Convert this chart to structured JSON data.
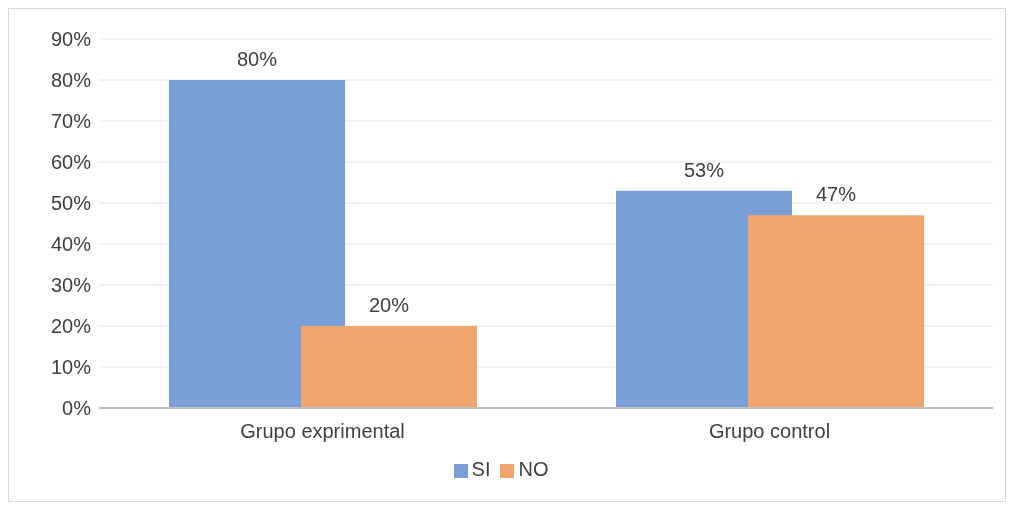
{
  "chart_data": {
    "type": "bar",
    "categories": [
      "Grupo exprimental",
      "Grupo control"
    ],
    "series": [
      {
        "name": "SI",
        "color": "#7a9fd6",
        "values": [
          80,
          53
        ],
        "value_labels": [
          "80%",
          "53%"
        ]
      },
      {
        "name": "NO",
        "color": "#f0a66e",
        "values": [
          20,
          47
        ],
        "value_labels": [
          "20%",
          "47%"
        ]
      }
    ],
    "ylim": [
      0,
      90
    ],
    "yticks": [
      {
        "value": 0,
        "label": "0%"
      },
      {
        "value": 10,
        "label": "10%"
      },
      {
        "value": 20,
        "label": "20%"
      },
      {
        "value": 30,
        "label": "30%"
      },
      {
        "value": 40,
        "label": "40%"
      },
      {
        "value": 50,
        "label": "50%"
      },
      {
        "value": 60,
        "label": "60%"
      },
      {
        "value": 70,
        "label": "70%"
      },
      {
        "value": 80,
        "label": "80%"
      },
      {
        "value": 90,
        "label": "90%"
      }
    ],
    "grid": "y",
    "legend": "bottom"
  }
}
